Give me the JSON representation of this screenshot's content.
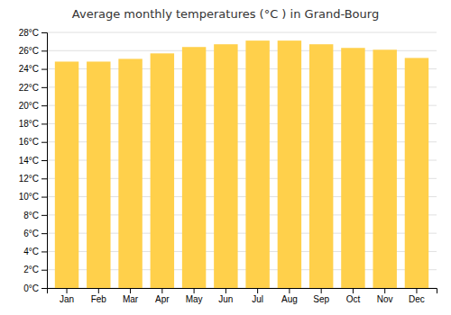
{
  "chart_data": {
    "type": "bar",
    "title": "Average monthly temperatures (°C ) in Grand-Bourg",
    "categories": [
      "Jan",
      "Feb",
      "Mar",
      "Apr",
      "May",
      "Jun",
      "Jul",
      "Aug",
      "Sep",
      "Oct",
      "Nov",
      "Dec"
    ],
    "values": [
      24.8,
      24.8,
      25.1,
      25.7,
      26.4,
      26.7,
      27.1,
      27.1,
      26.7,
      26.3,
      26.1,
      25.2
    ],
    "color": "#FFD04B",
    "ylim": [
      0,
      28
    ],
    "yticks": [
      {
        "value": 0,
        "label": "0°C"
      },
      {
        "value": 2,
        "label": "2°C"
      },
      {
        "value": 4,
        "label": "4°C"
      },
      {
        "value": 6,
        "label": "6°C"
      },
      {
        "value": 8,
        "label": "8°C"
      },
      {
        "value": 10,
        "label": "10°C"
      },
      {
        "value": 12,
        "label": "12°C"
      },
      {
        "value": 14,
        "label": "14°C"
      },
      {
        "value": 16,
        "label": "16°C"
      },
      {
        "value": 18,
        "label": "18°C"
      },
      {
        "value": 20,
        "label": "20°C"
      },
      {
        "value": 22,
        "label": "22°C"
      },
      {
        "value": 24,
        "label": "24°C"
      },
      {
        "value": 26,
        "label": "26°C"
      },
      {
        "value": 28,
        "label": "28°C"
      }
    ],
    "grid": true
  }
}
